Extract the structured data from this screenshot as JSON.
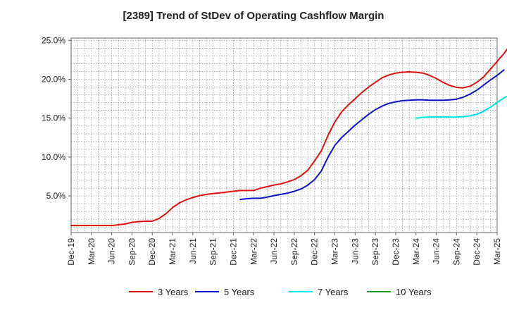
{
  "chart_data": {
    "type": "line",
    "title": "[2389]  Trend of StDev of Operating Cashflow Margin",
    "xlabel": "",
    "ylabel": "",
    "x_ticks": [
      "Dec-19",
      "Mar-20",
      "Jun-20",
      "Sep-20",
      "Dec-20",
      "Mar-21",
      "Jun-21",
      "Sep-21",
      "Dec-21",
      "Mar-22",
      "Jun-22",
      "Sep-22",
      "Dec-22",
      "Mar-23",
      "Jun-23",
      "Sep-23",
      "Dec-23",
      "Mar-24",
      "Jun-24",
      "Sep-24",
      "Dec-24",
      "Mar-25"
    ],
    "y_ticks": [
      "5.0%",
      "10.0%",
      "15.0%",
      "20.0%",
      "25.0%"
    ],
    "y_tick_values": [
      5,
      10,
      15,
      20,
      25
    ],
    "ylim": [
      0.3,
      25.3
    ],
    "grid": true,
    "legend_position": "bottom",
    "series": [
      {
        "name": "3 Years",
        "color": "#dd1111",
        "values": [
          [
            0,
            1.2
          ],
          [
            1,
            1.2
          ],
          [
            2,
            1.2
          ],
          [
            3,
            1.2
          ],
          [
            4,
            1.2
          ],
          [
            5,
            1.2
          ],
          [
            6,
            1.2
          ],
          [
            7,
            1.3
          ],
          [
            8,
            1.4
          ],
          [
            9,
            1.6
          ],
          [
            10,
            1.7
          ],
          [
            11,
            1.75
          ],
          [
            12,
            1.75
          ],
          [
            13,
            2.1
          ],
          [
            14,
            2.7
          ],
          [
            15,
            3.5
          ],
          [
            16,
            4.1
          ],
          [
            17,
            4.5
          ],
          [
            18,
            4.8
          ],
          [
            19,
            5.05
          ],
          [
            20,
            5.2
          ],
          [
            21,
            5.3
          ],
          [
            22,
            5.4
          ],
          [
            23,
            5.5
          ],
          [
            24,
            5.6
          ],
          [
            25,
            5.7
          ],
          [
            26,
            5.7
          ],
          [
            27,
            5.7
          ],
          [
            28,
            6.0
          ],
          [
            29,
            6.2
          ],
          [
            30,
            6.4
          ],
          [
            31,
            6.55
          ],
          [
            32,
            6.8
          ],
          [
            33,
            7.1
          ],
          [
            34,
            7.6
          ],
          [
            35,
            8.3
          ],
          [
            36,
            9.5
          ],
          [
            37,
            10.8
          ],
          [
            38,
            12.8
          ],
          [
            39,
            14.5
          ],
          [
            40,
            15.8
          ],
          [
            41,
            16.7
          ],
          [
            42,
            17.5
          ],
          [
            43,
            18.3
          ],
          [
            44,
            19.0
          ],
          [
            45,
            19.6
          ],
          [
            46,
            20.2
          ],
          [
            47,
            20.55
          ],
          [
            48,
            20.8
          ],
          [
            49,
            20.9
          ],
          [
            50,
            20.95
          ],
          [
            51,
            20.9
          ],
          [
            52,
            20.8
          ],
          [
            53,
            20.5
          ],
          [
            54,
            20.1
          ],
          [
            55,
            19.6
          ],
          [
            56,
            19.2
          ],
          [
            57,
            18.95
          ],
          [
            58,
            18.9
          ],
          [
            59,
            19.1
          ],
          [
            60,
            19.6
          ],
          [
            61,
            20.3
          ],
          [
            62,
            21.3
          ],
          [
            63,
            22.3
          ],
          [
            64,
            23.3
          ],
          [
            65,
            24.5
          ]
        ]
      },
      {
        "name": "5 Years",
        "color": "#1111cc",
        "values": [
          [
            25,
            4.55
          ],
          [
            26,
            4.65
          ],
          [
            27,
            4.7
          ],
          [
            28,
            4.7
          ],
          [
            29,
            4.85
          ],
          [
            30,
            5.05
          ],
          [
            31,
            5.2
          ],
          [
            32,
            5.35
          ],
          [
            33,
            5.6
          ],
          [
            34,
            5.9
          ],
          [
            35,
            6.4
          ],
          [
            36,
            7.1
          ],
          [
            37,
            8.2
          ],
          [
            38,
            10.0
          ],
          [
            39,
            11.5
          ],
          [
            40,
            12.5
          ],
          [
            41,
            13.3
          ],
          [
            42,
            14.1
          ],
          [
            43,
            14.8
          ],
          [
            44,
            15.5
          ],
          [
            45,
            16.1
          ],
          [
            46,
            16.55
          ],
          [
            47,
            16.9
          ],
          [
            48,
            17.1
          ],
          [
            49,
            17.25
          ],
          [
            50,
            17.3
          ],
          [
            51,
            17.35
          ],
          [
            52,
            17.35
          ],
          [
            53,
            17.3
          ],
          [
            54,
            17.3
          ],
          [
            55,
            17.3
          ],
          [
            56,
            17.35
          ],
          [
            57,
            17.45
          ],
          [
            58,
            17.7
          ],
          [
            59,
            18.1
          ],
          [
            60,
            18.6
          ],
          [
            61,
            19.25
          ],
          [
            62,
            19.9
          ],
          [
            63,
            20.5
          ],
          [
            64,
            21.2
          ]
        ]
      },
      {
        "name": "7 Years",
        "color": "#00e5e5",
        "values": [
          [
            51,
            15.0
          ],
          [
            52,
            15.1
          ],
          [
            53,
            15.15
          ],
          [
            54,
            15.15
          ],
          [
            55,
            15.15
          ],
          [
            56,
            15.15
          ],
          [
            57,
            15.15
          ],
          [
            58,
            15.2
          ],
          [
            59,
            15.3
          ],
          [
            60,
            15.5
          ],
          [
            61,
            15.9
          ],
          [
            62,
            16.4
          ],
          [
            63,
            17.0
          ],
          [
            64,
            17.6
          ],
          [
            65,
            18.1
          ]
        ]
      },
      {
        "name": "10 Years",
        "color": "#229922",
        "values": []
      }
    ]
  }
}
